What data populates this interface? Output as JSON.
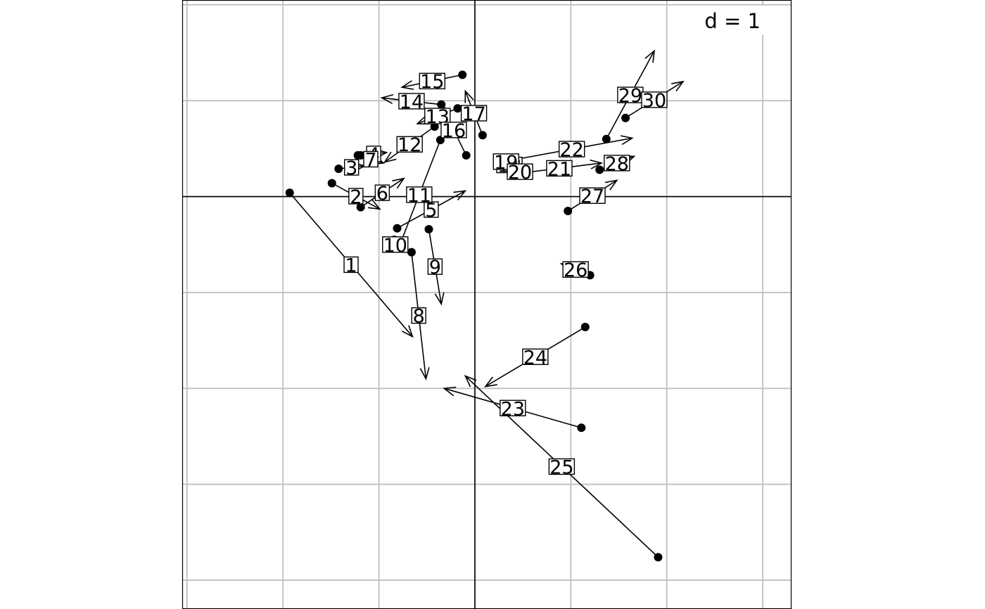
{
  "chart_data": {
    "type": "scatter",
    "subtype": "arrows",
    "scale_label": "d = 1",
    "grid": true,
    "axes_lines_at_origin": true,
    "xlim": [
      -3.05,
      3.3
    ],
    "ylim": [
      -4.3,
      2.05
    ],
    "grid_step": 1,
    "colors": {
      "grid": "#c0c0c0",
      "ink": "#000000"
    },
    "arrows": [
      {
        "label": "1",
        "from": [
          -1.93,
          0.04
        ],
        "to": [
          -0.65,
          -1.46
        ]
      },
      {
        "label": "2",
        "from": [
          -1.49,
          0.14
        ],
        "to": [
          -0.99,
          -0.13
        ]
      },
      {
        "label": "3",
        "from": [
          -1.42,
          0.29
        ],
        "to": [
          -1.15,
          0.32
        ]
      },
      {
        "label": "4",
        "from": [
          -1.19,
          0.43
        ],
        "to": [
          -0.92,
          0.46
        ]
      },
      {
        "label": "5",
        "from": [
          -0.81,
          -0.33
        ],
        "to": [
          -0.1,
          0.06
        ]
      },
      {
        "label": "6",
        "from": [
          -1.19,
          -0.11
        ],
        "to": [
          -0.74,
          0.19
        ]
      },
      {
        "label": "7",
        "from": [
          -1.22,
          0.43
        ],
        "to": [
          -0.95,
          0.35
        ]
      },
      {
        "label": "8",
        "from": [
          -0.66,
          -0.58
        ],
        "to": [
          -0.51,
          -1.9
        ]
      },
      {
        "label": "9",
        "from": [
          -0.48,
          -0.34
        ],
        "to": [
          -0.35,
          -1.12
        ]
      },
      {
        "label": "10",
        "from": [
          -0.84,
          -0.45
        ],
        "to": [
          -0.82,
          -0.55
        ]
      },
      {
        "label": "11",
        "from": [
          -0.36,
          0.59
        ],
        "to": [
          -0.8,
          -0.55
        ]
      },
      {
        "label": "12",
        "from": [
          -0.42,
          0.73
        ],
        "to": [
          -0.94,
          0.36
        ]
      },
      {
        "label": "13",
        "from": [
          -0.18,
          0.92
        ],
        "to": [
          -0.6,
          0.76
        ]
      },
      {
        "label": "14",
        "from": [
          -0.35,
          0.96
        ],
        "to": [
          -0.97,
          1.03
        ]
      },
      {
        "label": "15",
        "from": [
          -0.13,
          1.27
        ],
        "to": [
          -0.76,
          1.14
        ]
      },
      {
        "label": "16",
        "from": [
          -0.09,
          0.43
        ],
        "to": [
          -0.35,
          0.96
        ]
      },
      {
        "label": "17",
        "from": [
          0.08,
          0.64
        ],
        "to": [
          -0.1,
          1.1
        ]
      },
      {
        "label": "18",
        "from": [
          0.32,
          0.32
        ],
        "to": [
          0.4,
          0.34
        ]
      },
      {
        "label": "19",
        "from": [
          0.25,
          0.39
        ],
        "to": [
          0.4,
          0.34
        ]
      },
      {
        "label": "20",
        "from": [
          0.44,
          0.24
        ],
        "to": [
          0.5,
          0.28
        ]
      },
      {
        "label": "21",
        "from": [
          0.44,
          0.24
        ],
        "to": [
          1.32,
          0.35
        ]
      },
      {
        "label": "22",
        "from": [
          0.38,
          0.38
        ],
        "to": [
          1.64,
          0.61
        ]
      },
      {
        "label": "23",
        "from": [
          1.11,
          -2.41
        ],
        "to": [
          -0.32,
          -2.0
        ]
      },
      {
        "label": "24",
        "from": [
          1.15,
          -1.36
        ],
        "to": [
          0.11,
          -1.98
        ]
      },
      {
        "label": "25",
        "from": [
          1.91,
          -3.76
        ],
        "to": [
          -0.1,
          -1.87
        ]
      },
      {
        "label": "26",
        "from": [
          1.2,
          -0.82
        ],
        "to": [
          0.9,
          -0.7
        ]
      },
      {
        "label": "27",
        "from": [
          0.97,
          -0.15
        ],
        "to": [
          1.48,
          0.17
        ]
      },
      {
        "label": "28",
        "from": [
          1.3,
          0.28
        ],
        "to": [
          1.66,
          0.42
        ]
      },
      {
        "label": "29",
        "from": [
          1.37,
          0.6
        ],
        "to": [
          1.87,
          1.52
        ]
      },
      {
        "label": "30",
        "from": [
          1.57,
          0.82
        ],
        "to": [
          2.17,
          1.2
        ]
      }
    ]
  }
}
